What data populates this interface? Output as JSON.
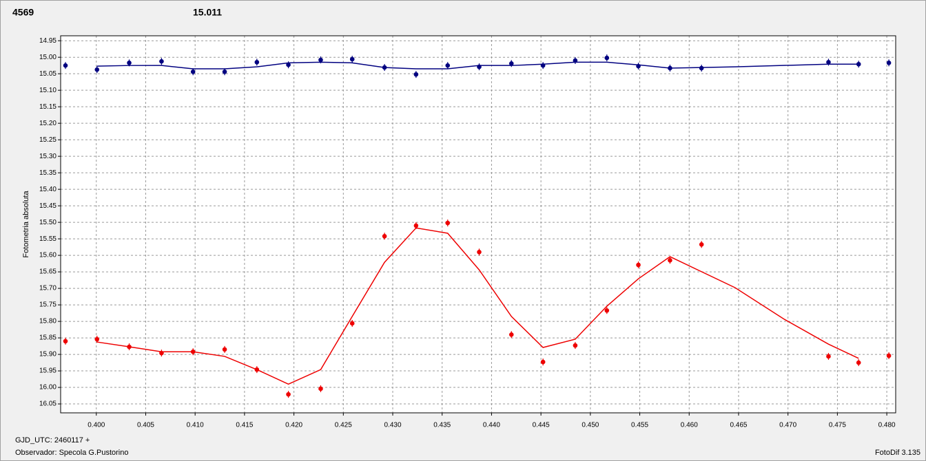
{
  "chart_data": {
    "type": "scatter",
    "y_label": "Fotometria absoluta",
    "footer_left": [
      "GJD_UTC: 2460117 +",
      "Observador: Specola G.Pustorino"
    ],
    "footer_right": "FotoDif 3.135",
    "xlim": [
      0.39639,
      0.4809
    ],
    "ylim": [
      16.077,
      14.935
    ],
    "grid": true,
    "xticks": [
      {
        "value": 0.4,
        "label": "0.400"
      },
      0.405,
      {
        "value": 0.41,
        "label": "0.410"
      },
      0.415,
      {
        "value": 0.42,
        "label": "0.420"
      },
      0.425,
      {
        "value": 0.43,
        "label": "0.430"
      },
      0.435,
      {
        "value": 0.44,
        "label": "0.440"
      },
      0.445,
      {
        "value": 0.45,
        "label": "0.450"
      },
      0.455,
      {
        "value": 0.46,
        "label": "0.460"
      },
      0.465,
      {
        "value": 0.47,
        "label": "0.470"
      },
      0.475,
      {
        "value": 0.48,
        "label": "0.480"
      }
    ],
    "yticks": [
      14.95,
      {
        "value": 15.0,
        "label": "15.00"
      },
      15.05,
      {
        "value": 15.1,
        "label": "15.10"
      },
      15.15,
      {
        "value": 15.2,
        "label": "15.20"
      },
      15.25,
      {
        "value": 15.3,
        "label": "15.30"
      },
      15.35,
      {
        "value": 15.4,
        "label": "15.40"
      },
      15.45,
      {
        "value": 15.5,
        "label": "15.50"
      },
      15.55,
      {
        "value": 15.6,
        "label": "15.60"
      },
      15.65,
      {
        "value": 15.7,
        "label": "15.70"
      },
      15.75,
      {
        "value": 15.8,
        "label": "15.80"
      },
      15.85,
      {
        "value": 15.9,
        "label": "15.90"
      },
      15.95,
      {
        "value": 16.0,
        "label": "16.00"
      },
      16.05
    ],
    "series": [
      {
        "name": "4569",
        "color": "#ee0000",
        "x": [
          0.39688,
          0.40007,
          0.40333,
          0.4066,
          0.40979,
          0.41299,
          0.41625,
          0.41944,
          0.42271,
          0.4259,
          0.42917,
          0.43236,
          0.43556,
          0.43875,
          0.44201,
          0.44521,
          0.44847,
          0.45167,
          0.45486,
          0.45806,
          0.46125,
          0.4741,
          0.47715,
          0.48021
        ],
        "values": [
          15.86,
          15.854,
          15.877,
          15.896,
          15.892,
          15.885,
          15.946,
          16.021,
          16.004,
          15.806,
          15.542,
          15.51,
          15.502,
          15.59,
          15.84,
          15.923,
          15.873,
          15.767,
          15.629,
          15.615,
          15.567,
          15.906,
          15.925,
          15.904
        ],
        "fit_x": [
          0.40007,
          0.40333,
          0.4066,
          0.40979,
          0.41299,
          0.41625,
          0.41944,
          0.42271,
          0.4259,
          0.42917,
          0.43236,
          0.43556,
          0.43875,
          0.44201,
          0.44521,
          0.44847,
          0.45167,
          0.45486,
          0.45806,
          0.46465,
          0.46965,
          0.4741,
          0.47715
        ],
        "fit_values": [
          15.8625,
          15.877,
          15.892,
          15.892,
          15.906,
          15.946,
          15.99,
          15.946,
          15.785,
          15.621,
          15.517,
          15.533,
          15.644,
          15.785,
          15.879,
          15.854,
          15.754,
          15.671,
          15.604,
          15.698,
          15.794,
          15.869,
          15.912
        ]
      },
      {
        "name": "15.011",
        "color": "#000080",
        "x": [
          0.39688,
          0.40007,
          0.40333,
          0.4066,
          0.40979,
          0.41299,
          0.41625,
          0.41944,
          0.42271,
          0.4259,
          0.42917,
          0.43236,
          0.43556,
          0.43875,
          0.44201,
          0.44521,
          0.44847,
          0.45167,
          0.45486,
          0.45806,
          0.46125,
          0.4741,
          0.47715,
          0.48021
        ],
        "values": [
          15.025,
          15.0375,
          15.017,
          15.0125,
          15.044,
          15.044,
          15.015,
          15.023,
          15.008,
          15.006,
          15.031,
          15.052,
          15.025,
          15.029,
          15.019,
          15.025,
          15.01,
          15.002,
          15.027,
          15.033,
          15.033,
          15.015,
          15.021,
          15.017
        ],
        "fit_x": [
          0.40007,
          0.40333,
          0.4066,
          0.40979,
          0.41299,
          0.41625,
          0.41944,
          0.42271,
          0.4259,
          0.42917,
          0.43236,
          0.43556,
          0.43875,
          0.44201,
          0.44521,
          0.44847,
          0.45167,
          0.45486,
          0.45806,
          0.46125,
          0.46465,
          0.4741,
          0.47715
        ],
        "fit_values": [
          15.027,
          15.025,
          15.025,
          15.035,
          15.035,
          15.029,
          15.017,
          15.015,
          15.017,
          15.031,
          15.035,
          15.035,
          15.025,
          15.025,
          15.021,
          15.015,
          15.015,
          15.023,
          15.033,
          15.031,
          15.029,
          15.021,
          15.021
        ]
      }
    ]
  }
}
